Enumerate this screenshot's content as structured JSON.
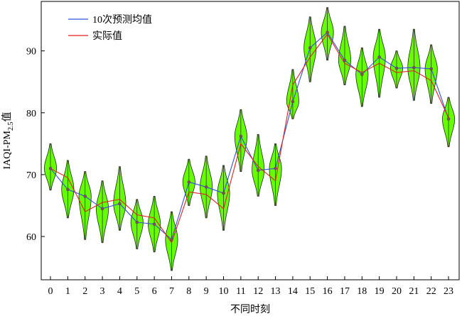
{
  "chart_data": {
    "type": "violin+line",
    "xlabel": "不同时刻",
    "ylabel": {
      "main": "IAQI-PM",
      "sub": "2.5",
      "suffix": "值"
    },
    "ylim": [
      53,
      98
    ],
    "yticks": [
      60,
      70,
      80,
      90
    ],
    "x": [
      "0",
      "1",
      "2",
      "3",
      "4",
      "5",
      "6",
      "7",
      "8",
      "9",
      "10",
      "11",
      "12",
      "13",
      "14",
      "15",
      "16",
      "17",
      "18",
      "19",
      "20",
      "21",
      "22",
      "23"
    ],
    "legend": {
      "position": "top-left",
      "entries": [
        "10次预测均值",
        "实际值"
      ]
    },
    "colors": {
      "pred": "#3050e0",
      "actual": "#e02020",
      "violin_fill": "#66ff00",
      "violin_edge": "#222222"
    },
    "series": [
      {
        "name": "10次预测均值",
        "values": [
          71.0,
          67.6,
          66.5,
          64.5,
          65.3,
          62.3,
          62.0,
          59.5,
          68.8,
          68.0,
          67.0,
          76.2,
          70.7,
          71.0,
          81.8,
          90.5,
          93.0,
          88.5,
          86.2,
          89.0,
          87.2,
          87.3,
          87.1,
          79.0
        ]
      },
      {
        "name": "实际值",
        "values": [
          71.0,
          69.5,
          64.0,
          65.5,
          66.0,
          63.5,
          63.0,
          59.0,
          67.2,
          66.8,
          64.5,
          75.0,
          71.3,
          69.0,
          84.5,
          89.0,
          92.7,
          88.0,
          86.5,
          88.0,
          86.5,
          86.8,
          85.2,
          79.2
        ]
      }
    ],
    "violins": [
      {
        "center": 71.0,
        "min": 67.5,
        "max": 75.0
      },
      {
        "center": 67.6,
        "min": 63.0,
        "max": 72.3
      },
      {
        "center": 66.5,
        "min": 59.5,
        "max": 70.5
      },
      {
        "center": 64.5,
        "min": 59.0,
        "max": 69.0
      },
      {
        "center": 65.3,
        "min": 61.0,
        "max": 71.3
      },
      {
        "center": 62.3,
        "min": 58.0,
        "max": 66.0
      },
      {
        "center": 62.0,
        "min": 57.5,
        "max": 66.5
      },
      {
        "center": 59.5,
        "min": 54.5,
        "max": 64.0
      },
      {
        "center": 68.8,
        "min": 65.0,
        "max": 72.5
      },
      {
        "center": 68.0,
        "min": 63.0,
        "max": 73.0
      },
      {
        "center": 67.0,
        "min": 61.0,
        "max": 71.5
      },
      {
        "center": 76.2,
        "min": 70.5,
        "max": 80.5
      },
      {
        "center": 70.7,
        "min": 66.5,
        "max": 76.5
      },
      {
        "center": 71.0,
        "min": 65.0,
        "max": 75.0
      },
      {
        "center": 81.8,
        "min": 79.0,
        "max": 87.0
      },
      {
        "center": 90.5,
        "min": 85.0,
        "max": 95.5
      },
      {
        "center": 93.0,
        "min": 88.5,
        "max": 97.0
      },
      {
        "center": 88.5,
        "min": 84.5,
        "max": 94.0
      },
      {
        "center": 86.2,
        "min": 81.0,
        "max": 90.5
      },
      {
        "center": 89.0,
        "min": 82.5,
        "max": 93.5
      },
      {
        "center": 87.2,
        "min": 84.0,
        "max": 90.0
      },
      {
        "center": 87.3,
        "min": 82.0,
        "max": 93.5
      },
      {
        "center": 87.1,
        "min": 81.5,
        "max": 91.0
      },
      {
        "center": 79.0,
        "min": 74.5,
        "max": 82.5
      }
    ]
  }
}
